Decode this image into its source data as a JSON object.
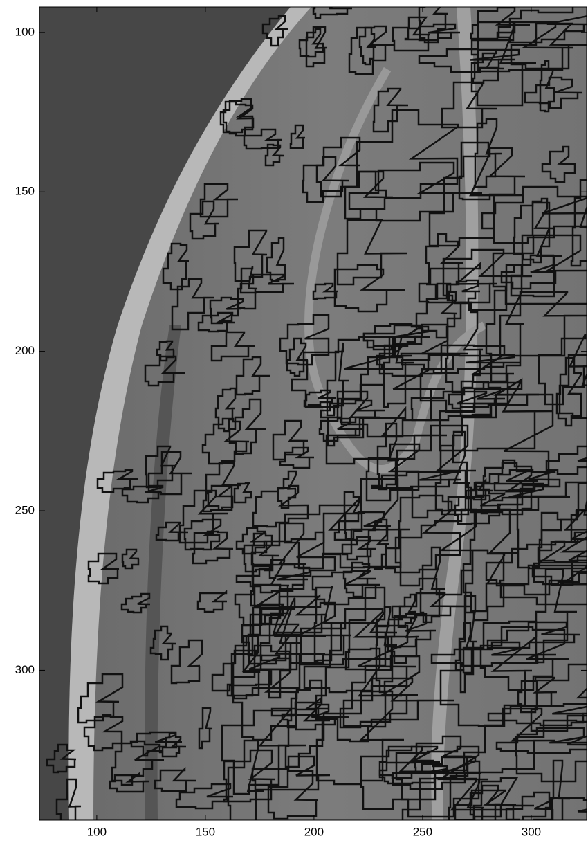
{
  "chart_data": {
    "type": "image",
    "xlim": [
      73.6,
      325.5
    ],
    "ylim": [
      92,
      347
    ],
    "ydir": "reverse",
    "xticks": [
      100,
      150,
      200,
      250,
      300
    ],
    "yticks": [
      100,
      150,
      200,
      250,
      300
    ]
  }
}
